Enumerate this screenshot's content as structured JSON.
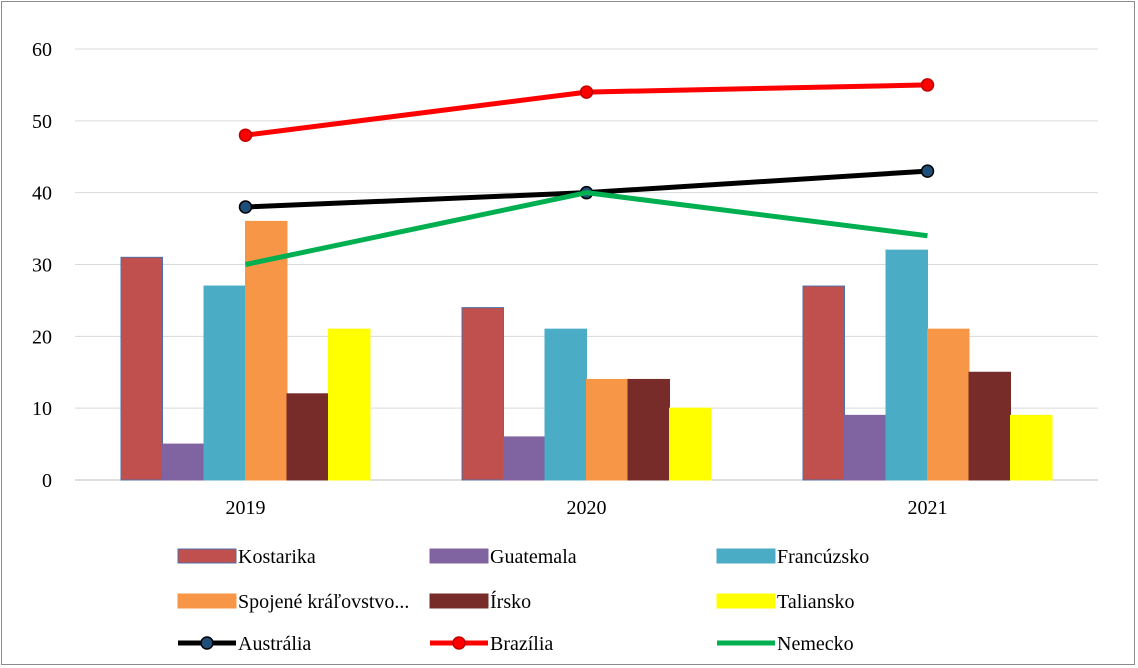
{
  "chart_data": {
    "type": "bar",
    "categories": [
      "2019",
      "2020",
      "2021"
    ],
    "ylim": [
      0,
      60
    ],
    "yticks": [
      0,
      10,
      20,
      30,
      40,
      50,
      60
    ],
    "grid": true,
    "legend_position": "bottom",
    "bar_series": [
      {
        "name": "Kostarika",
        "values": [
          31,
          24,
          27
        ],
        "color": "#c0504d",
        "edge": "#4f6fa8"
      },
      {
        "name": "Guatemala",
        "values": [
          5,
          6,
          9
        ],
        "color": "#8064a2",
        "edge": "#8064a2"
      },
      {
        "name": "Francúzsko",
        "values": [
          27,
          21,
          32
        ],
        "color": "#4bacc6",
        "edge": "#4bacc6"
      },
      {
        "name": "Spojené kráľovstvo...",
        "values": [
          36,
          14,
          21
        ],
        "color": "#f79646",
        "edge": "#f79646"
      },
      {
        "name": "Írsko",
        "values": [
          12,
          14,
          15
        ],
        "color": "#772c2a",
        "edge": "#772c2a"
      },
      {
        "name": "Taliansko",
        "values": [
          21,
          10,
          9
        ],
        "color": "#ffff00",
        "edge": "#ffff00"
      }
    ],
    "line_series": [
      {
        "name": "Austrália",
        "values": [
          38,
          40,
          43
        ],
        "color": "#000000",
        "marker": true,
        "marker_fill": "#1f4e79"
      },
      {
        "name": "Brazília",
        "values": [
          48,
          54,
          55
        ],
        "color": "#ff0000",
        "marker": true,
        "marker_fill": "#ff0000"
      },
      {
        "name": "Nemecko",
        "values": [
          30,
          40,
          34
        ],
        "color": "#00b050",
        "marker": false,
        "marker_fill": ""
      }
    ]
  }
}
